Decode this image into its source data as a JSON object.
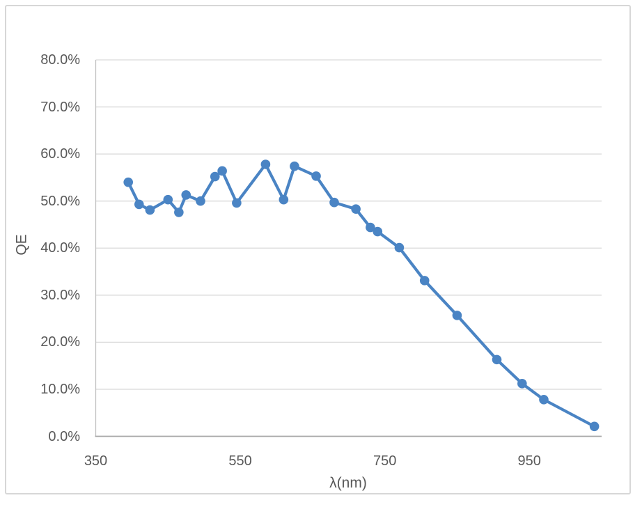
{
  "chart_data": {
    "type": "line",
    "title": "",
    "xlabel": "λ(nm)",
    "ylabel": "QE",
    "legend": "none",
    "grid": "horizontal-only",
    "marker": "circle",
    "xlim": [
      350,
      1050
    ],
    "ylim": [
      0,
      80
    ],
    "x_tick_values": [
      350,
      550,
      750,
      950
    ],
    "x_tick_labels": [
      "350",
      "550",
      "750",
      "950"
    ],
    "y_tick_values": [
      80,
      70,
      60,
      50,
      40,
      30,
      20,
      10,
      0
    ],
    "y_tick_labels": [
      "80.0%",
      "70.0%",
      "60.0%",
      "50.0%",
      "40.0%",
      "30.0%",
      "20.0%",
      "10.0%",
      "0.0%"
    ],
    "series": [
      {
        "name": "QE",
        "x_nm": [
          395,
          410,
          425,
          450,
          465,
          475,
          495,
          515,
          525,
          545,
          585,
          610,
          625,
          655,
          680,
          710,
          730,
          740,
          770,
          805,
          850,
          905,
          940,
          970,
          1040
        ],
        "y_percent": [
          54.0,
          49.3,
          48.1,
          50.3,
          47.6,
          51.3,
          50.0,
          55.2,
          56.4,
          49.6,
          57.8,
          50.3,
          57.4,
          55.3,
          49.7,
          48.3,
          44.4,
          43.5,
          40.1,
          33.1,
          25.7,
          16.3,
          11.2,
          7.8,
          2.1
        ]
      }
    ],
    "colors": {
      "line": "#4A84C4",
      "marker_fill": "#4A84C4",
      "gridline": "#D9D9D9",
      "y_axis_line": "#BFBFBF",
      "x_axis_line": "#A6A6A6",
      "tick_text": "#595959",
      "chart_border": "#D7D7D7",
      "background": "#FFFFFF"
    }
  }
}
